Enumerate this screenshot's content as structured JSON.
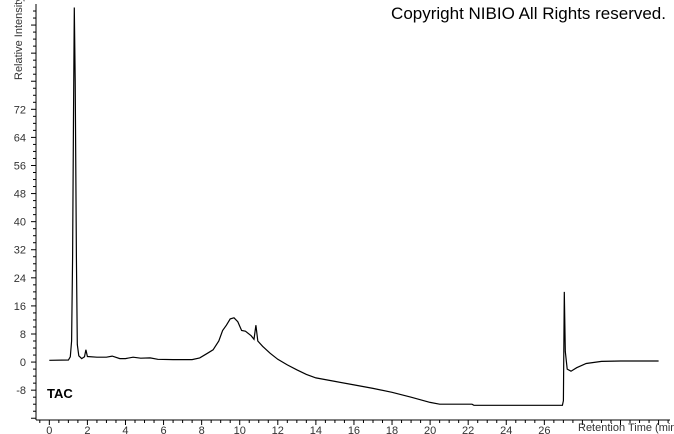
{
  "copyright": "Copyright NIBIO All Rights reserved.",
  "chart_data": {
    "type": "line",
    "title": "",
    "trace_label": "TAC",
    "xlabel": "Retention Time (min)",
    "ylabel": "Relative Intensity",
    "xlim": [
      -0.7,
      32.6
    ],
    "ylim": [
      -16.5,
      102
    ],
    "xticks": [
      0,
      2,
      4,
      6,
      8,
      10,
      12,
      14,
      16,
      18,
      20,
      22,
      24,
      26
    ],
    "yticks": [
      -8,
      0,
      8,
      16,
      24,
      32,
      40,
      48,
      56,
      64,
      72
    ],
    "grid": false,
    "line_color": "#000000",
    "points": [
      [
        0,
        0.5
      ],
      [
        1.0,
        0.6
      ],
      [
        1.1,
        1.5
      ],
      [
        1.17,
        6
      ],
      [
        1.22,
        30
      ],
      [
        1.27,
        70
      ],
      [
        1.31,
        101
      ],
      [
        1.36,
        80
      ],
      [
        1.42,
        30
      ],
      [
        1.47,
        5
      ],
      [
        1.55,
        1.8
      ],
      [
        1.7,
        1.0
      ],
      [
        1.85,
        1.5
      ],
      [
        1.92,
        3.5
      ],
      [
        2.0,
        1.6
      ],
      [
        2.5,
        1.4
      ],
      [
        3.0,
        1.4
      ],
      [
        3.3,
        1.7
      ],
      [
        3.7,
        1.0
      ],
      [
        4.0,
        1.0
      ],
      [
        4.4,
        1.4
      ],
      [
        4.8,
        1.1
      ],
      [
        5.3,
        1.2
      ],
      [
        5.7,
        0.8
      ],
      [
        6.5,
        0.7
      ],
      [
        7.5,
        0.7
      ],
      [
        7.9,
        1.2
      ],
      [
        8.3,
        2.5
      ],
      [
        8.6,
        3.5
      ],
      [
        8.9,
        6
      ],
      [
        9.1,
        9
      ],
      [
        9.3,
        10.5
      ],
      [
        9.5,
        12.3
      ],
      [
        9.7,
        12.6
      ],
      [
        9.9,
        11.5
      ],
      [
        10.1,
        9
      ],
      [
        10.3,
        8.8
      ],
      [
        10.6,
        7.5
      ],
      [
        10.75,
        6.5
      ],
      [
        10.85,
        10.5
      ],
      [
        10.95,
        6
      ],
      [
        11.2,
        4.5
      ],
      [
        11.6,
        2.5
      ],
      [
        12.0,
        0.8
      ],
      [
        12.5,
        -0.8
      ],
      [
        13.0,
        -2.2
      ],
      [
        13.5,
        -3.5
      ],
      [
        14.0,
        -4.5
      ],
      [
        15.0,
        -5.5
      ],
      [
        16.0,
        -6.5
      ],
      [
        17.0,
        -7.5
      ],
      [
        18.0,
        -8.6
      ],
      [
        19.0,
        -10
      ],
      [
        20.0,
        -11.5
      ],
      [
        20.5,
        -12
      ],
      [
        22.2,
        -12
      ],
      [
        22.3,
        -12.3
      ],
      [
        26.95,
        -12.3
      ],
      [
        27.0,
        -11
      ],
      [
        27.05,
        20
      ],
      [
        27.1,
        3
      ],
      [
        27.2,
        -2
      ],
      [
        27.4,
        -2.6
      ],
      [
        27.7,
        -1.6
      ],
      [
        28.2,
        -0.4
      ],
      [
        29.0,
        0.2
      ],
      [
        30.0,
        0.3
      ],
      [
        32.0,
        0.3
      ]
    ]
  }
}
